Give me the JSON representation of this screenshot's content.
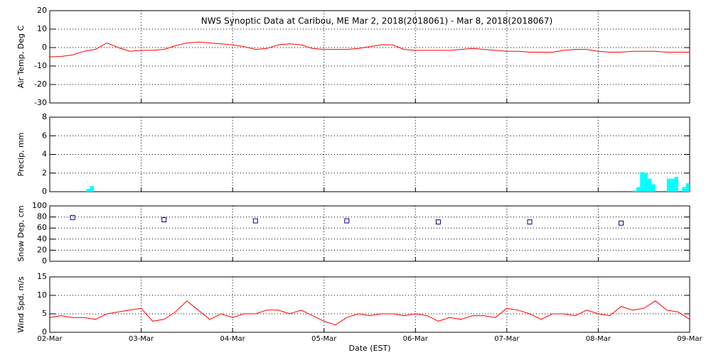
{
  "chart_data": [
    {
      "type": "line",
      "title": "NWS Synoptic Data at Caribou, ME   Mar  2, 2018(2018061) - Mar  8, 2018(2018067)",
      "y_label": "Air Temp, Deg C",
      "ylim": [
        -30,
        20
      ],
      "yticks": [
        -30,
        -20,
        -10,
        0,
        10,
        20
      ],
      "grid": true,
      "xlim": [
        0,
        7
      ],
      "series": [
        {
          "name": "Air Temp",
          "color": "#ff0000",
          "x": [
            0,
            0.125,
            0.25,
            0.375,
            0.5,
            0.625,
            0.75,
            0.875,
            1,
            1.125,
            1.25,
            1.375,
            1.5,
            1.625,
            1.75,
            1.875,
            2,
            2.125,
            2.25,
            2.375,
            2.5,
            2.625,
            2.75,
            2.875,
            3,
            3.125,
            3.25,
            3.375,
            3.5,
            3.625,
            3.75,
            3.875,
            4,
            4.125,
            4.25,
            4.375,
            4.5,
            4.625,
            4.75,
            4.875,
            5,
            5.125,
            5.25,
            5.375,
            5.5,
            5.625,
            5.75,
            5.875,
            6,
            6.125,
            6.25,
            6.375,
            6.5,
            6.625,
            6.75,
            6.875,
            7
          ],
          "values": [
            -5,
            -4.8,
            -4,
            -2,
            -1,
            2.5,
            0,
            -2,
            -1.5,
            -1.5,
            -1,
            1,
            2.5,
            3,
            2.5,
            2,
            1.5,
            0.5,
            -1,
            -0.5,
            1.5,
            2,
            1.5,
            -0.5,
            -1,
            -1,
            -1,
            -0.5,
            0.5,
            1.5,
            1.5,
            -1,
            -1.5,
            -1.5,
            -1.5,
            -1.5,
            -1,
            -0.5,
            -1,
            -1.5,
            -2,
            -2,
            -2.5,
            -2.5,
            -2.5,
            -1.5,
            -1,
            -1,
            -2,
            -2.5,
            -2.5,
            -2,
            -2,
            -2,
            -2.5,
            -2.5,
            -2.5
          ]
        }
      ]
    },
    {
      "type": "bar",
      "y_label": "Precip, mm",
      "ylim": [
        0,
        8
      ],
      "yticks": [
        0,
        2,
        4,
        6,
        8
      ],
      "grid": true,
      "xlim": [
        0,
        7
      ],
      "bar_width": 0.0417,
      "series": [
        {
          "name": "Precip",
          "color": "#00ffff",
          "x": [
            0.4,
            0.44,
            6.375,
            6.417,
            6.458,
            6.5,
            6.542,
            6.583,
            6.75,
            6.792,
            6.833,
            6.917,
            6.958
          ],
          "values": [
            0.3,
            0.6,
            0.1,
            0.5,
            2.1,
            2.0,
            1.4,
            0.8,
            1.4,
            1.4,
            1.6,
            0.5,
            0.9
          ]
        }
      ]
    },
    {
      "type": "scatter",
      "y_label": "Snow Dep, cm",
      "ylim": [
        0,
        100
      ],
      "yticks": [
        0,
        20,
        40,
        60,
        80,
        100
      ],
      "grid": true,
      "xlim": [
        0,
        7
      ],
      "series": [
        {
          "name": "Snow Depth",
          "color": "#000080",
          "x": [
            0.25,
            1.25,
            2.25,
            3.25,
            4.25,
            5.25,
            6.25
          ],
          "values": [
            79,
            75,
            73,
            73,
            71,
            71,
            69
          ]
        }
      ]
    },
    {
      "type": "line",
      "y_label": "Wind Spd, m/s",
      "x_label": "Date (EST)",
      "ylim": [
        0,
        15
      ],
      "yticks": [
        0,
        5,
        10,
        15
      ],
      "grid": true,
      "xlim": [
        0,
        7
      ],
      "xticks": [
        {
          "value": 0,
          "label": "02-Mar"
        },
        {
          "value": 1,
          "label": "03-Mar"
        },
        {
          "value": 2,
          "label": "04-Mar"
        },
        {
          "value": 3,
          "label": "05-Mar"
        },
        {
          "value": 4,
          "label": "06-Mar"
        },
        {
          "value": 5,
          "label": "07-Mar"
        },
        {
          "value": 6,
          "label": "08-Mar"
        },
        {
          "value": 7,
          "label": "09-Mar"
        }
      ],
      "series": [
        {
          "name": "Wind Speed",
          "color": "#ff0000",
          "x": [
            0,
            0.125,
            0.25,
            0.375,
            0.5,
            0.625,
            0.75,
            0.875,
            1,
            1.125,
            1.25,
            1.375,
            1.5,
            1.625,
            1.75,
            1.875,
            2,
            2.125,
            2.25,
            2.375,
            2.5,
            2.625,
            2.75,
            2.875,
            3,
            3.125,
            3.25,
            3.375,
            3.5,
            3.625,
            3.75,
            3.875,
            4,
            4.125,
            4.25,
            4.375,
            4.5,
            4.625,
            4.75,
            4.875,
            5,
            5.125,
            5.25,
            5.375,
            5.5,
            5.625,
            5.75,
            5.875,
            6,
            6.125,
            6.25,
            6.375,
            6.5,
            6.625,
            6.75,
            6.875,
            7
          ],
          "values": [
            4,
            4.5,
            4,
            4,
            3.5,
            5,
            5.5,
            6,
            6.5,
            3,
            3.5,
            5.5,
            8.5,
            6,
            3.5,
            5,
            4,
            5,
            5,
            6,
            6,
            5,
            6,
            4.5,
            3,
            2,
            4,
            5,
            4.5,
            5,
            5,
            4.5,
            5,
            4.5,
            3,
            4,
            3.5,
            4.5,
            4.5,
            4,
            6.5,
            6,
            5,
            3.5,
            5,
            5,
            4.5,
            6,
            5,
            4.5,
            7,
            6,
            6.5,
            8.5,
            6,
            5.5,
            3.5
          ]
        }
      ]
    }
  ]
}
